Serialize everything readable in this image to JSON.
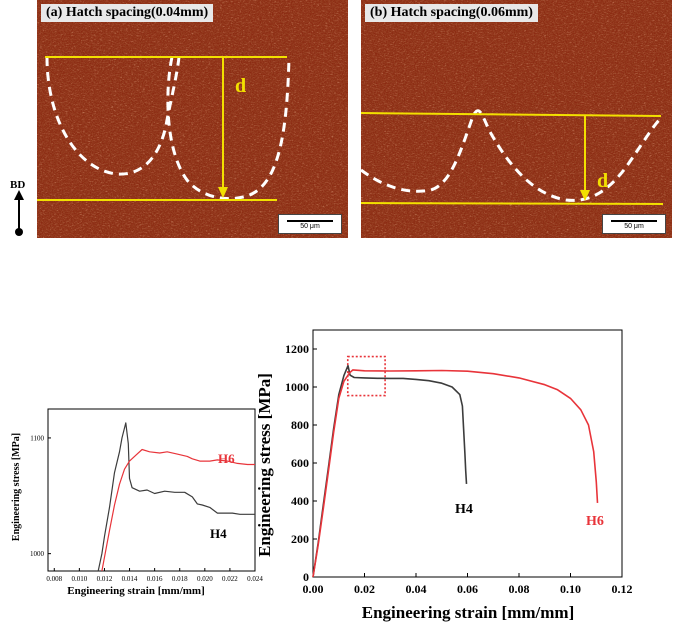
{
  "micrographs": {
    "panel_a": {
      "label": "(a) Hatch spacing(0.04mm)",
      "marker": "d",
      "scalebar": "50 μm"
    },
    "panel_b": {
      "label": "(b) Hatch spacing(0.06mm)",
      "marker": "d",
      "scalebar": "50 μm"
    },
    "build_direction": "BD",
    "colors": {
      "background": "#8c2a12",
      "yellow": "#f2e000",
      "dashed": "#ffffff"
    }
  },
  "chart_data": [
    {
      "type": "line",
      "title": "",
      "xlabel": "Engineering strain [mm/mm]",
      "ylabel": "Engineering stress [MPa]",
      "xlim": [
        0.0,
        0.12
      ],
      "ylim": [
        0,
        1300
      ],
      "x_ticks": [
        "0.00",
        "0.02",
        "0.04",
        "0.06",
        "0.08",
        "0.10",
        "0.12"
      ],
      "y_ticks": [
        "0",
        "200",
        "400",
        "600",
        "800",
        "1000",
        "1200"
      ],
      "highlight_box": {
        "x": [
          0.0135,
          0.028
        ],
        "y": [
          955,
          1160
        ]
      },
      "series": [
        {
          "name": "H4",
          "color": "#3c3c3c",
          "points": [
            [
              0,
              0
            ],
            [
              0.002,
              180
            ],
            [
              0.004,
              380
            ],
            [
              0.006,
              580
            ],
            [
              0.008,
              780
            ],
            [
              0.01,
              960
            ],
            [
              0.012,
              1060
            ],
            [
              0.0136,
              1112
            ],
            [
              0.0144,
              1062
            ],
            [
              0.016,
              1050
            ],
            [
              0.02,
              1048
            ],
            [
              0.025,
              1046
            ],
            [
              0.03,
              1045
            ],
            [
              0.035,
              1045
            ],
            [
              0.04,
              1040
            ],
            [
              0.045,
              1033
            ],
            [
              0.05,
              1020
            ],
            [
              0.054,
              1000
            ],
            [
              0.057,
              960
            ],
            [
              0.058,
              900
            ],
            [
              0.0585,
              780
            ],
            [
              0.059,
              650
            ],
            [
              0.0593,
              560
            ],
            [
              0.0596,
              490
            ]
          ]
        },
        {
          "name": "H6",
          "color": "#e8343a",
          "points": [
            [
              0,
              0
            ],
            [
              0.002,
              170
            ],
            [
              0.004,
              360
            ],
            [
              0.006,
              560
            ],
            [
              0.008,
              760
            ],
            [
              0.01,
              940
            ],
            [
              0.012,
              1030
            ],
            [
              0.0142,
              1075
            ],
            [
              0.0155,
              1090
            ],
            [
              0.02,
              1085
            ],
            [
              0.03,
              1084
            ],
            [
              0.04,
              1085
            ],
            [
              0.05,
              1087
            ],
            [
              0.06,
              1083
            ],
            [
              0.07,
              1070
            ],
            [
              0.08,
              1048
            ],
            [
              0.09,
              1012
            ],
            [
              0.095,
              985
            ],
            [
              0.1,
              940
            ],
            [
              0.104,
              880
            ],
            [
              0.107,
              800
            ],
            [
              0.109,
              660
            ],
            [
              0.11,
              500
            ],
            [
              0.1105,
              390
            ]
          ]
        }
      ]
    },
    {
      "type": "line",
      "title": "",
      "xlabel": "Engineering strain [mm/mm]",
      "ylabel": "Engineering stress [MPa]",
      "xlim": [
        0.0075,
        0.024
      ],
      "ylim": [
        985,
        1125
      ],
      "x_ticks": [
        "0.008",
        "0.010",
        "0.012",
        "0.014",
        "0.016",
        "0.018",
        "0.020",
        "0.022",
        "0.024"
      ],
      "y_ticks": [
        "1000",
        "1100"
      ],
      "series": [
        {
          "name": "H4",
          "color": "#3c3c3c",
          "points": [
            [
              0.0115,
              985
            ],
            [
              0.0118,
              1000
            ],
            [
              0.012,
              1015
            ],
            [
              0.0124,
              1040
            ],
            [
              0.0128,
              1070
            ],
            [
              0.0132,
              1088
            ],
            [
              0.0134,
              1100
            ],
            [
              0.0137,
              1113
            ],
            [
              0.0139,
              1095
            ],
            [
              0.014,
              1065
            ],
            [
              0.0142,
              1057
            ],
            [
              0.0148,
              1054
            ],
            [
              0.0154,
              1055
            ],
            [
              0.016,
              1052
            ],
            [
              0.0168,
              1054
            ],
            [
              0.0176,
              1053
            ],
            [
              0.0184,
              1053
            ],
            [
              0.019,
              1049
            ],
            [
              0.0194,
              1043
            ],
            [
              0.0198,
              1042
            ],
            [
              0.0204,
              1040
            ],
            [
              0.021,
              1035
            ],
            [
              0.0216,
              1035
            ],
            [
              0.0222,
              1035
            ],
            [
              0.0228,
              1034
            ],
            [
              0.024,
              1034
            ]
          ]
        },
        {
          "name": "H6",
          "color": "#e8343a",
          "points": [
            [
              0.0118,
              985
            ],
            [
              0.012,
              997
            ],
            [
              0.0124,
              1020
            ],
            [
              0.0128,
              1042
            ],
            [
              0.0132,
              1060
            ],
            [
              0.0136,
              1073
            ],
            [
              0.014,
              1080
            ],
            [
              0.0146,
              1086
            ],
            [
              0.015,
              1090
            ],
            [
              0.0156,
              1088
            ],
            [
              0.0164,
              1087
            ],
            [
              0.017,
              1088
            ],
            [
              0.0178,
              1086
            ],
            [
              0.0186,
              1084
            ],
            [
              0.019,
              1082
            ],
            [
              0.0196,
              1080
            ],
            [
              0.0204,
              1080
            ],
            [
              0.021,
              1081
            ],
            [
              0.0218,
              1080
            ],
            [
              0.0226,
              1078
            ],
            [
              0.0234,
              1077
            ],
            [
              0.024,
              1077
            ]
          ]
        }
      ]
    }
  ]
}
